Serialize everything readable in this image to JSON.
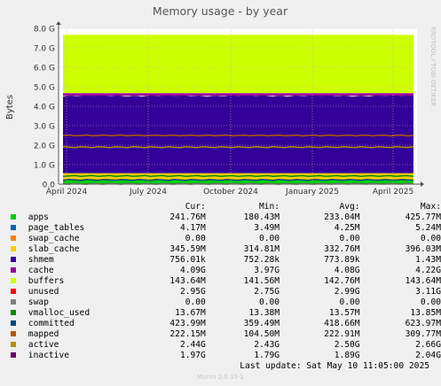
{
  "chart_data": {
    "type": "area",
    "title": "Memory usage - by year",
    "ylabel": "Bytes",
    "ylim": [
      0,
      8
    ],
    "y_unit": "G",
    "yticks": [
      "0.0",
      "1.0 G",
      "2.0 G",
      "3.0 G",
      "4.0 G",
      "5.0 G",
      "6.0 G",
      "7.0 G",
      "8.0 G"
    ],
    "xticks": [
      "April 2024",
      "July 2024",
      "October 2024",
      "January 2025",
      "April 2025"
    ],
    "grid": true,
    "side_label": "RRDTOOL / TOBI OETIKER",
    "stacked_series": [
      {
        "name": "apps",
        "color": "#00cc00",
        "value_g": 0.23
      },
      {
        "name": "page_tables",
        "color": "#0066b3",
        "value_g": 0.004
      },
      {
        "name": "swap_cache",
        "color": "#ff8000",
        "value_g": 0.0
      },
      {
        "name": "slab_cache",
        "color": "#ffcc00",
        "value_g": 0.33
      },
      {
        "name": "shmem",
        "color": "#330099",
        "value_g": 0.001
      },
      {
        "name": "cache",
        "color": "#330099",
        "value_g": 3.97
      },
      {
        "name": "buffers",
        "color": "#990099",
        "value_g": 0.14
      },
      {
        "name": "unused",
        "color": "#ccff00",
        "value_g": 2.99
      },
      {
        "name": "swap",
        "color": "#ff0000",
        "value_g": 0.0
      }
    ],
    "line_series": [
      {
        "name": "vmalloc_used",
        "color": "#808080",
        "value_g": 0.014
      },
      {
        "name": "committed",
        "color": "#008f00",
        "value_g": 0.42
      },
      {
        "name": "mapped",
        "color": "#00487d",
        "value_g": 0.22
      },
      {
        "name": "active",
        "color": "#b35a00",
        "value_g": 2.5
      },
      {
        "name": "inactive",
        "color": "#b38f00",
        "value_g": 1.9
      }
    ]
  },
  "legend": {
    "headers": {
      "cur": "Cur:",
      "min": "Min:",
      "avg": "Avg:",
      "max": "Max:"
    },
    "rows": [
      {
        "name": "apps",
        "color": "#00cc00",
        "cur": "241.76M",
        "min": "180.43M",
        "avg": "233.04M",
        "max": "425.77M"
      },
      {
        "name": "page_tables",
        "color": "#0066b3",
        "cur": "4.17M",
        "min": "3.49M",
        "avg": "4.25M",
        "max": "5.24M"
      },
      {
        "name": "swap_cache",
        "color": "#ff8000",
        "cur": "0.00",
        "min": "0.00",
        "avg": "0.00",
        "max": "0.00"
      },
      {
        "name": "slab_cache",
        "color": "#ffcc00",
        "cur": "345.59M",
        "min": "314.81M",
        "avg": "332.76M",
        "max": "396.03M"
      },
      {
        "name": "shmem",
        "color": "#330099",
        "cur": "756.01k",
        "min": "752.28k",
        "avg": "773.89k",
        "max": "1.43M"
      },
      {
        "name": "cache",
        "color": "#990099",
        "cur": "4.09G",
        "min": "3.97G",
        "avg": "4.08G",
        "max": "4.22G"
      },
      {
        "name": "buffers",
        "color": "#ccff00",
        "cur": "143.64M",
        "min": "141.56M",
        "avg": "142.76M",
        "max": "143.64M"
      },
      {
        "name": "unused",
        "color": "#ff0000",
        "cur": "2.95G",
        "min": "2.75G",
        "avg": "2.99G",
        "max": "3.11G"
      },
      {
        "name": "swap",
        "color": "#808080",
        "cur": "0.00",
        "min": "0.00",
        "avg": "0.00",
        "max": "0.00"
      },
      {
        "name": "vmalloc_used",
        "color": "#008f00",
        "cur": "13.67M",
        "min": "13.38M",
        "avg": "13.57M",
        "max": "13.85M"
      },
      {
        "name": "committed",
        "color": "#00487d",
        "cur": "423.99M",
        "min": "359.49M",
        "avg": "418.66M",
        "max": "623.97M"
      },
      {
        "name": "mapped",
        "color": "#b35a00",
        "cur": "222.15M",
        "min": "104.50M",
        "avg": "222.91M",
        "max": "309.77M"
      },
      {
        "name": "active",
        "color": "#b38f00",
        "cur": "2.44G",
        "min": "2.43G",
        "avg": "2.50G",
        "max": "2.66G"
      },
      {
        "name": "inactive",
        "color": "#6b006b",
        "cur": "1.97G",
        "min": "1.79G",
        "avg": "1.89G",
        "max": "2.04G"
      }
    ]
  },
  "last_update": "Last update: Sat May 10 11:05:00 2025",
  "munin_version": "Munin 2.0.33-1"
}
